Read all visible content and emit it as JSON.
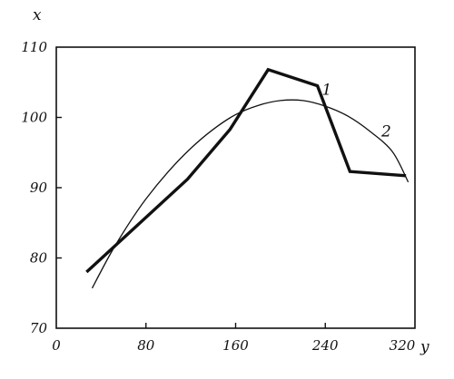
{
  "chart_data": {
    "type": "line",
    "xlabel": "y",
    "ylabel": "x",
    "xlim": [
      0,
      320
    ],
    "ylim": [
      70,
      110
    ],
    "grid": false,
    "x_ticks": [
      "0",
      "80",
      "160",
      "240",
      "320"
    ],
    "x_tick_values": [
      0,
      80,
      160,
      240,
      320
    ],
    "y_ticks": [
      "70",
      "80",
      "90",
      "100",
      "110"
    ],
    "y_tick_values": [
      70,
      80,
      90,
      100,
      110
    ],
    "series": [
      {
        "name": "1",
        "style": "thick-polyline",
        "x": [
          27,
          117,
          155,
          189,
          233,
          262,
          312
        ],
        "y": [
          78.0,
          91.2,
          98.3,
          106.8,
          104.5,
          92.3,
          91.7
        ]
      },
      {
        "name": "2",
        "style": "thin-curve",
        "x": [
          32,
          48,
          64,
          80,
          100,
          120,
          140,
          160,
          180,
          200,
          220,
          240,
          260,
          280,
          300,
          314
        ],
        "y": [
          75.7,
          80.5,
          84.7,
          88.4,
          92.3,
          95.6,
          98.3,
          100.4,
          101.7,
          102.4,
          102.4,
          101.6,
          100.2,
          98.0,
          95.1,
          90.8
        ]
      }
    ]
  }
}
